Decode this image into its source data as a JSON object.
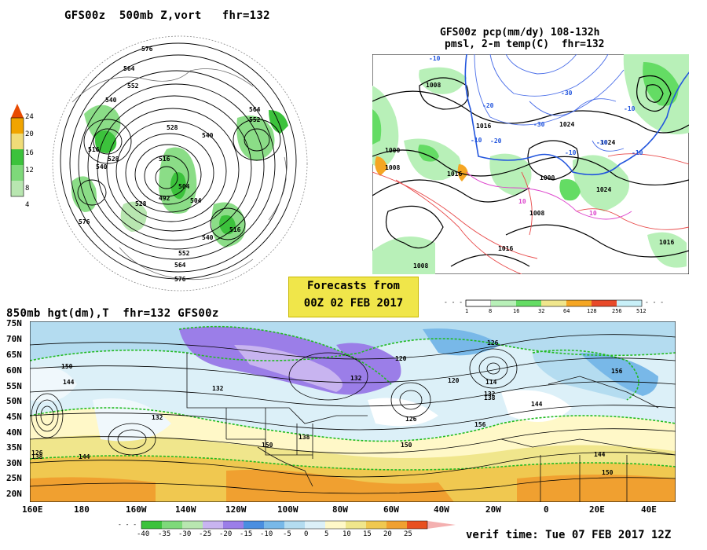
{
  "panels": {
    "vort": {
      "title": "GFS00z  500mb Z,vort   fhr=132",
      "colorbar": {
        "labels": [
          "24",
          "20",
          "16",
          "12",
          "8",
          "4"
        ]
      },
      "contour_labels": [
        "576",
        "564",
        "552",
        "540",
        "528",
        "516",
        "504",
        "492",
        "540",
        "528",
        "516",
        "552",
        "564",
        "576",
        "540",
        "516",
        "504",
        "528",
        "540",
        "552",
        "564",
        "576"
      ]
    },
    "precip": {
      "title_line1": "GFS00z pcp(mm/dy) 108-132h",
      "title_line2": "pmsl, 2-m temp(C)  fhr=132",
      "isobar_labels": [
        "1008",
        "1024",
        "1016",
        "1000",
        "1008",
        "1016",
        "1024",
        "1008",
        "1000",
        "1016",
        "1016",
        "1024",
        "1008"
      ],
      "temp_labels": [
        "-10",
        "-20",
        "-30",
        "-10",
        "-20",
        "-30",
        "-10",
        "10",
        "10",
        "-10",
        "-30",
        "-10"
      ],
      "colorbar": {
        "labels": [
          "1",
          "8",
          "16",
          "32",
          "64",
          "128",
          "256",
          "512"
        ]
      }
    },
    "hgt850": {
      "title": "850mb hgt(dm),T  fhr=132 GFS00z",
      "lat_labels": [
        "75N",
        "70N",
        "65N",
        "60N",
        "55N",
        "50N",
        "45N",
        "40N",
        "35N",
        "30N",
        "25N",
        "20N"
      ],
      "lon_labels": [
        "160E",
        "180",
        "160W",
        "140W",
        "120W",
        "100W",
        "80W",
        "60W",
        "40W",
        "20W",
        "0",
        "20E",
        "40E"
      ],
      "contour_labels": [
        "150",
        "144",
        "132",
        "126",
        "138",
        "144",
        "150",
        "132",
        "120",
        "126",
        "150",
        "156",
        "120",
        "114",
        "132",
        "138",
        "144",
        "144",
        "150",
        "156",
        "132",
        "138",
        "126"
      ],
      "colorbar": {
        "labels": [
          "-40",
          "-35",
          "-30",
          "-25",
          "-20",
          "-15",
          "-10",
          "-5",
          "0",
          "5",
          "10",
          "15",
          "20",
          "25"
        ]
      }
    }
  },
  "forecast_box": {
    "line1": "Forecasts from",
    "line2": "00Z 02 FEB 2017"
  },
  "verif_time": "verif time: Tue 07 FEB 2017 12Z",
  "colors": {
    "vort_scale": [
      "#ffffff",
      "#b8e6b0",
      "#7ed97a",
      "#3cc23c",
      "#f0dc78",
      "#f0a400",
      "#e84a00"
    ],
    "pcp_scale": [
      "#ffffff",
      "#b8f0b8",
      "#64dc64",
      "#f0e68c",
      "#f5a623",
      "#e84a2a",
      "#c8f0f8"
    ],
    "temp_scale": [
      "#3cc23c",
      "#7ed97a",
      "#b8e6b0",
      "#c8b4f0",
      "#9b7ee8",
      "#4a8ee0",
      "#78b8e8",
      "#b4dcf0",
      "#dcf0f8",
      "#fff8c8",
      "#f0e68c",
      "#f0c850",
      "#f0a030",
      "#e85020"
    ]
  }
}
